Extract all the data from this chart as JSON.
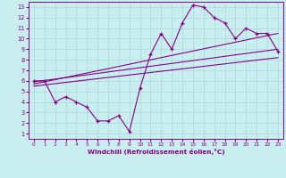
{
  "xlabel": "Windchill (Refroidissement éolien,°C)",
  "bg_color": "#c8eef0",
  "line_color": "#880088",
  "xlim": [
    -0.5,
    23.5
  ],
  "ylim": [
    0.5,
    13.5
  ],
  "xticks": [
    0,
    1,
    2,
    3,
    4,
    5,
    6,
    7,
    8,
    9,
    10,
    11,
    12,
    13,
    14,
    15,
    16,
    17,
    18,
    19,
    20,
    21,
    22,
    23
  ],
  "yticks": [
    1,
    2,
    3,
    4,
    5,
    6,
    7,
    8,
    9,
    10,
    11,
    12,
    13
  ],
  "main_line_x": [
    0,
    1,
    2,
    3,
    4,
    5,
    6,
    7,
    8,
    9,
    10,
    11,
    12,
    13,
    14,
    15,
    16,
    17,
    18,
    19,
    20,
    21,
    22,
    23
  ],
  "main_line_y": [
    6.0,
    6.0,
    4.0,
    4.5,
    4.0,
    3.5,
    2.2,
    2.2,
    2.7,
    1.2,
    5.3,
    8.5,
    10.5,
    9.0,
    11.5,
    13.2,
    13.0,
    12.0,
    11.5,
    10.0,
    11.0,
    10.5,
    10.5,
    8.8
  ],
  "straight_lines": [
    {
      "x0": 0,
      "y0": 5.9,
      "x1": 23,
      "y1": 9.0
    },
    {
      "x0": 0,
      "y0": 5.7,
      "x1": 23,
      "y1": 10.5
    },
    {
      "x0": 0,
      "y0": 5.5,
      "x1": 23,
      "y1": 8.2
    }
  ],
  "grid_color": "#aad8dc",
  "spine_color": "#880088"
}
